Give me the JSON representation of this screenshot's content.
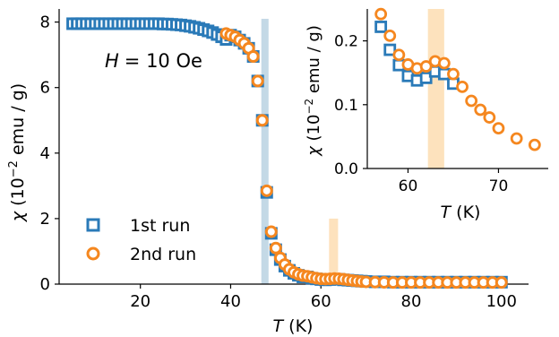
{
  "chart_data": [
    {
      "type": "scatter",
      "title": "",
      "annotation": {
        "H_symbol": "H",
        "H_value": "= 10 Oe"
      },
      "xlabel": {
        "symbol": "T",
        "unit": " (K)"
      },
      "ylabel": {
        "symbol": "χ",
        "base": " (10",
        "exp": "−2",
        "unit": " emu / g)"
      },
      "xlim": [
        2,
        106
      ],
      "ylim": [
        0,
        8.4
      ],
      "xticks": [
        20,
        40,
        60,
        80,
        100
      ],
      "yticks": [
        0,
        2,
        4,
        6,
        8
      ],
      "shaded_bands": [
        {
          "x0": 46.8,
          "x1": 48.4,
          "y0": 0,
          "y1": 8.1,
          "color": "#c4d9e6"
        },
        {
          "x0": 61.8,
          "x1": 63.8,
          "y0": 0,
          "y1": 2.0,
          "color": "#fde2bd"
        }
      ],
      "legend": {
        "placement": "lower-left"
      },
      "series": [
        {
          "name": "1st run",
          "marker": "square",
          "color": "#2a7ab8",
          "x": [
            5,
            6,
            7,
            8,
            9,
            10,
            11,
            12,
            13,
            14,
            15,
            16,
            17,
            18,
            19,
            20,
            21,
            22,
            23,
            24,
            25,
            26,
            27,
            28,
            29,
            30,
            31,
            32,
            33,
            34,
            35,
            36,
            37,
            38,
            39,
            40,
            41,
            42,
            43,
            44,
            45,
            46,
            47,
            48,
            49,
            50,
            51,
            52,
            53,
            54,
            55,
            56,
            57,
            58,
            59,
            60,
            61,
            62,
            63,
            64,
            65,
            66,
            67,
            68,
            69,
            70,
            72,
            74,
            76,
            78,
            80,
            82,
            84,
            86,
            88,
            90,
            92,
            94,
            96,
            98,
            100
          ],
          "y": [
            7.95,
            7.95,
            7.95,
            7.95,
            7.95,
            7.95,
            7.95,
            7.95,
            7.95,
            7.95,
            7.95,
            7.95,
            7.95,
            7.95,
            7.95,
            7.95,
            7.95,
            7.95,
            7.95,
            7.95,
            7.94,
            7.94,
            7.93,
            7.92,
            7.91,
            7.89,
            7.87,
            7.84,
            7.81,
            7.77,
            7.73,
            7.68,
            7.62,
            7.55,
            7.47,
            7.6,
            7.55,
            7.45,
            7.35,
            7.2,
            6.95,
            6.2,
            5.0,
            2.8,
            1.55,
            1.05,
            0.75,
            0.55,
            0.42,
            0.33,
            0.27,
            0.22,
            0.22,
            0.18,
            0.16,
            0.14,
            0.13,
            0.14,
            0.15,
            0.15,
            0.13,
            0.12,
            0.11,
            0.1,
            0.09,
            0.08,
            0.07,
            0.07,
            0.06,
            0.06,
            0.06,
            0.06,
            0.06,
            0.06,
            0.06,
            0.06,
            0.06,
            0.06,
            0.06,
            0.06,
            0.06
          ]
        },
        {
          "name": "2nd run",
          "marker": "circle",
          "color": "#f5871f",
          "x": [
            39,
            40,
            41,
            42,
            43,
            44,
            45,
            46,
            47,
            48,
            49,
            50,
            51,
            52,
            53,
            54,
            55,
            56,
            57,
            58,
            59,
            60,
            61,
            62,
            63,
            64,
            65,
            66,
            67,
            68,
            69,
            70,
            72,
            74,
            76,
            78,
            80,
            82,
            84,
            86,
            88,
            90,
            92,
            94,
            96,
            98,
            100
          ],
          "y": [
            7.65,
            7.6,
            7.55,
            7.45,
            7.35,
            7.2,
            6.95,
            6.2,
            5.0,
            2.85,
            1.6,
            1.1,
            0.8,
            0.6,
            0.45,
            0.36,
            0.3,
            0.26,
            0.24,
            0.21,
            0.18,
            0.16,
            0.155,
            0.16,
            0.17,
            0.165,
            0.15,
            0.13,
            0.11,
            0.095,
            0.08,
            0.07,
            0.06,
            0.055,
            0.05,
            0.05,
            0.05,
            0.05,
            0.05,
            0.05,
            0.05,
            0.05,
            0.05,
            0.05,
            0.05,
            0.05,
            0.05
          ]
        }
      ]
    },
    {
      "type": "scatter",
      "title": "",
      "xlabel": {
        "symbol": "T",
        "unit": " (K)"
      },
      "ylabel": {
        "symbol": "χ",
        "base": " (10",
        "exp": "−2",
        "unit": " emu / g)"
      },
      "xlim": [
        55.5,
        75.5
      ],
      "ylim": [
        0,
        0.25
      ],
      "xticks": [
        60,
        70
      ],
      "xtick_labels": [
        "60",
        "70"
      ],
      "yticks": [
        0,
        0.1,
        0.2
      ],
      "ytick_labels": [
        "0.0",
        "0.1",
        "0.2"
      ],
      "shaded_bands": [
        {
          "x0": 62.2,
          "x1": 64.0,
          "y0": 0,
          "y1": 0.25,
          "color": "#fde2bd"
        }
      ],
      "series": [
        {
          "name": "1st run",
          "marker": "square",
          "color": "#2a7ab8",
          "x": [
            57,
            58,
            59,
            60,
            61,
            62,
            63,
            64,
            65
          ],
          "y": [
            0.222,
            0.186,
            0.162,
            0.145,
            0.138,
            0.142,
            0.152,
            0.148,
            0.133
          ]
        },
        {
          "name": "2nd run",
          "marker": "circle",
          "color": "#f5871f",
          "x": [
            57,
            58,
            59,
            60,
            61,
            62,
            63,
            64,
            65,
            66,
            67,
            68,
            69,
            70,
            72,
            74
          ],
          "y": [
            0.242,
            0.208,
            0.178,
            0.163,
            0.157,
            0.16,
            0.168,
            0.165,
            0.148,
            0.128,
            0.106,
            0.092,
            0.08,
            0.063,
            0.047,
            0.037
          ]
        }
      ]
    }
  ]
}
